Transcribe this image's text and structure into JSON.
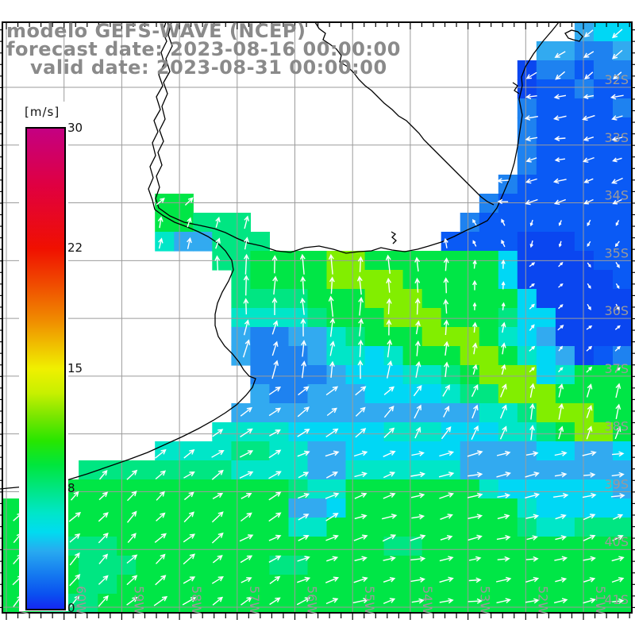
{
  "title": {
    "line1": "modelo GEFS-WAVE (NCEP)",
    "line2": "forecast date: 2023-08-16 00:00:00",
    "line3": "valid date: 2023-08-31 00:00:00"
  },
  "colorbar": {
    "unit_label": "[m/s]",
    "ticks": [
      "30",
      "22",
      "15",
      "8",
      "0"
    ],
    "min": 0,
    "max": 30
  },
  "axes": {
    "lat_labels": [
      "32S",
      "33S",
      "34S",
      "35S",
      "36S",
      "37S",
      "38S",
      "39S",
      "40S",
      "41S"
    ],
    "lon_labels": [
      "61W",
      "60W",
      "59W",
      "58W",
      "57W",
      "56W",
      "55W",
      "54W",
      "53W",
      "52W",
      "51W"
    ],
    "label_color": "#9a9a9a",
    "grid_color": "#9b9b9b"
  },
  "field": {
    "palette": {
      "B": "#0a46f0",
      "b": "#0a5af5",
      "d": "#1e82f0",
      "c": "#32aaf0",
      "C": "#00d7f5",
      "t": "#00e6c8",
      "g": "#00e682",
      "G": "#00e646",
      "y": "#82ee00"
    },
    "rows": [
      "..............................cCC",
      "............................ccddc",
      "...........................Bddbdd",
      "...........................Bbbdbb",
      "...........................dbbbbd",
      "...........................dbbbbb",
      "...........................dbbbbb",
      "...........................dbbbbb",
      "..........................dbbbbbb",
      "........GG...............dbbbbbbb",
      "........GGggg...........dbbbbbbbb",
      "........tccggg.........bbbbBBBbbb",
      "...........ggGGGGyyGGGGGGGCBBBBbb",
      "............gGGGGyyyyGGGGGCBBBBBb",
      "............ggggGGGyyyGGGGGCBBBBB",
      "............ttttgGGGyyyGGGgCCBBBB",
      "............cddcctgGGGyyyGtCcBBBB",
      "............cdddcttCtGGGyyGtCcBbd",
      ".............ddddcCCCttgGyyyCtGGG",
      ".............cddcccCCCCtggyyyGGGG",
      "............cccccccccccccttgyyyGG",
      "...........ttttCCCCCtttCCCttgGyyG",
      "........ttttggttccCCCCCCccccCCccC",
      "....ggggggggttttccttttttccccccccc",
      ".GGGGGGGGGGGGGGgttGGGGGGGtCCCCCCc",
      "GGGGGGGGGGGGGGGccCGGGGGGGGGtCCCCC",
      "GGGGGGGGGGGGGGGttGGGGGGGGGGgttggg",
      "GGGgggGGGGGGGGGGGGGGggGGGGGGGGGGG",
      "GGGGgggGGGGGGGggGGGGGGGGGGGGGGGGG",
      "GGGGggGGGGGGGGGGGGGGGGGGGGGGGGGGG",
      "GGgggGGGGGGGGGGGGGGGGGGGGGGGGGGGG"
    ]
  },
  "arrows": {
    "color": "#ffffff",
    "angles": [
      [
        45,
        45,
        45,
        45,
        45,
        45,
        45,
        200,
        205,
        215,
        215
      ],
      [
        45,
        45,
        45,
        45,
        45,
        45,
        45,
        190,
        185,
        190,
        195
      ],
      [
        45,
        45,
        45,
        45,
        45,
        45,
        170,
        175,
        185,
        195,
        200
      ],
      [
        60,
        60,
        75,
        75,
        80,
        90,
        90,
        100,
        115,
        250,
        240
      ],
      [
        60,
        60,
        70,
        90,
        90,
        90,
        90,
        90,
        85,
        40,
        305
      ],
      [
        50,
        50,
        50,
        55,
        75,
        85,
        85,
        85,
        80,
        45,
        40
      ],
      [
        40,
        40,
        35,
        30,
        32,
        35,
        45,
        60,
        70,
        80,
        75
      ],
      [
        45,
        45,
        45,
        35,
        30,
        25,
        20,
        15,
        12,
        10,
        8
      ],
      [
        45,
        45,
        45,
        40,
        30,
        25,
        20,
        15,
        12,
        18,
        25
      ],
      [
        48,
        45,
        42,
        35,
        30,
        25,
        18,
        12,
        8,
        10,
        12
      ]
    ],
    "lengths": [
      [
        13,
        13,
        13,
        13,
        13,
        13,
        13,
        14,
        14,
        14,
        14
      ],
      [
        13,
        13,
        13,
        13,
        13,
        13,
        13,
        14,
        14,
        14,
        14
      ],
      [
        13,
        13,
        13,
        13,
        13,
        13,
        13,
        14,
        14,
        14,
        13
      ],
      [
        12,
        12,
        12,
        13,
        15,
        16,
        16,
        12,
        8,
        7,
        7
      ],
      [
        14,
        14,
        14,
        20,
        22,
        22,
        20,
        18,
        10,
        7,
        7
      ],
      [
        14,
        14,
        16,
        16,
        20,
        20,
        20,
        18,
        14,
        8,
        8
      ],
      [
        15,
        15,
        16,
        16,
        16,
        16,
        16,
        16,
        18,
        18,
        16
      ],
      [
        16,
        16,
        16,
        16,
        16,
        16,
        17,
        17,
        17,
        16,
        15
      ],
      [
        16,
        16,
        16,
        16,
        16,
        16,
        17,
        17,
        16,
        15,
        14
      ],
      [
        17,
        17,
        17,
        16,
        16,
        16,
        17,
        17,
        16,
        15,
        14
      ]
    ]
  },
  "map": {
    "coastline_color": "#000000",
    "coastline_paths": [
      "M209,28 L205,40 L210,52 L203,66 L207,80 L200,94 L205,108 L197,122 L202,138 L194,152 L199,166 L192,180 L196,196 L189,210 L193,224 L187,238 L192,252 L195,264",
      "M216,28 L212,44 L217,58 L209,74 L214,90 L206,104 L211,118 L204,134 L208,150 L201,164 L206,178 L199,192 L204,208 L197,222 L201,236 L196,250 L200,262 L214,272 L232,280 L252,284 L270,288 L284,293 L298,300 L312,306 L330,310 L348,316 L366,318 L384,312 L402,310 L420,314 L436,319 L452,317 L468,316 L480,312 L494,315 L510,317 L526,314 L540,310 L556,305 L572,298 L588,290 L602,284 L614,278 L626,262 L634,244 L642,225 L648,205 L652,185 L655,165 L658,145 L654,125 L658,108 L657,97 L662,84 L672,68 L684,52 L696,38 L704,28",
      "M195,264 L206,272 L220,280 L236,286 L250,292 L262,298 L274,306 L284,316 L292,328 L294,340 L288,354 L280,368 L274,382 L271,396 L271,410 L275,424 L283,436 L293,446 L301,456 L307,466 L314,474 L322,477 L318,488 L310,498 L298,510 L284,520 L268,530 L250,540 L230,550 L208,560 L186,570 L162,579 L136,588 L110,597 L84,605 L58,610 L32,613 L10,615 L0,616",
      "M397,28 L402,36 L410,42 L407,50 L416,56 L424,62 L430,70 L428,78 L438,84 L446,92 L452,100 L460,108 L468,114 L476,122 L484,130 L494,138 L502,146 L512,152 L520,160 L528,168 L534,176 L542,184 L550,192 L558,200 L566,208 L574,216 L582,224 L590,232 L598,240 L606,248 L614,254 L622,258",
      "M712,42 L720,38 L728,40 L734,46 L730,52 L722,50 L716,48 Z",
      "M493,292 L498,295 L494,299 L499,303 L495,307",
      "M646,104 L652,108 L648,114 L654,118"
    ]
  }
}
